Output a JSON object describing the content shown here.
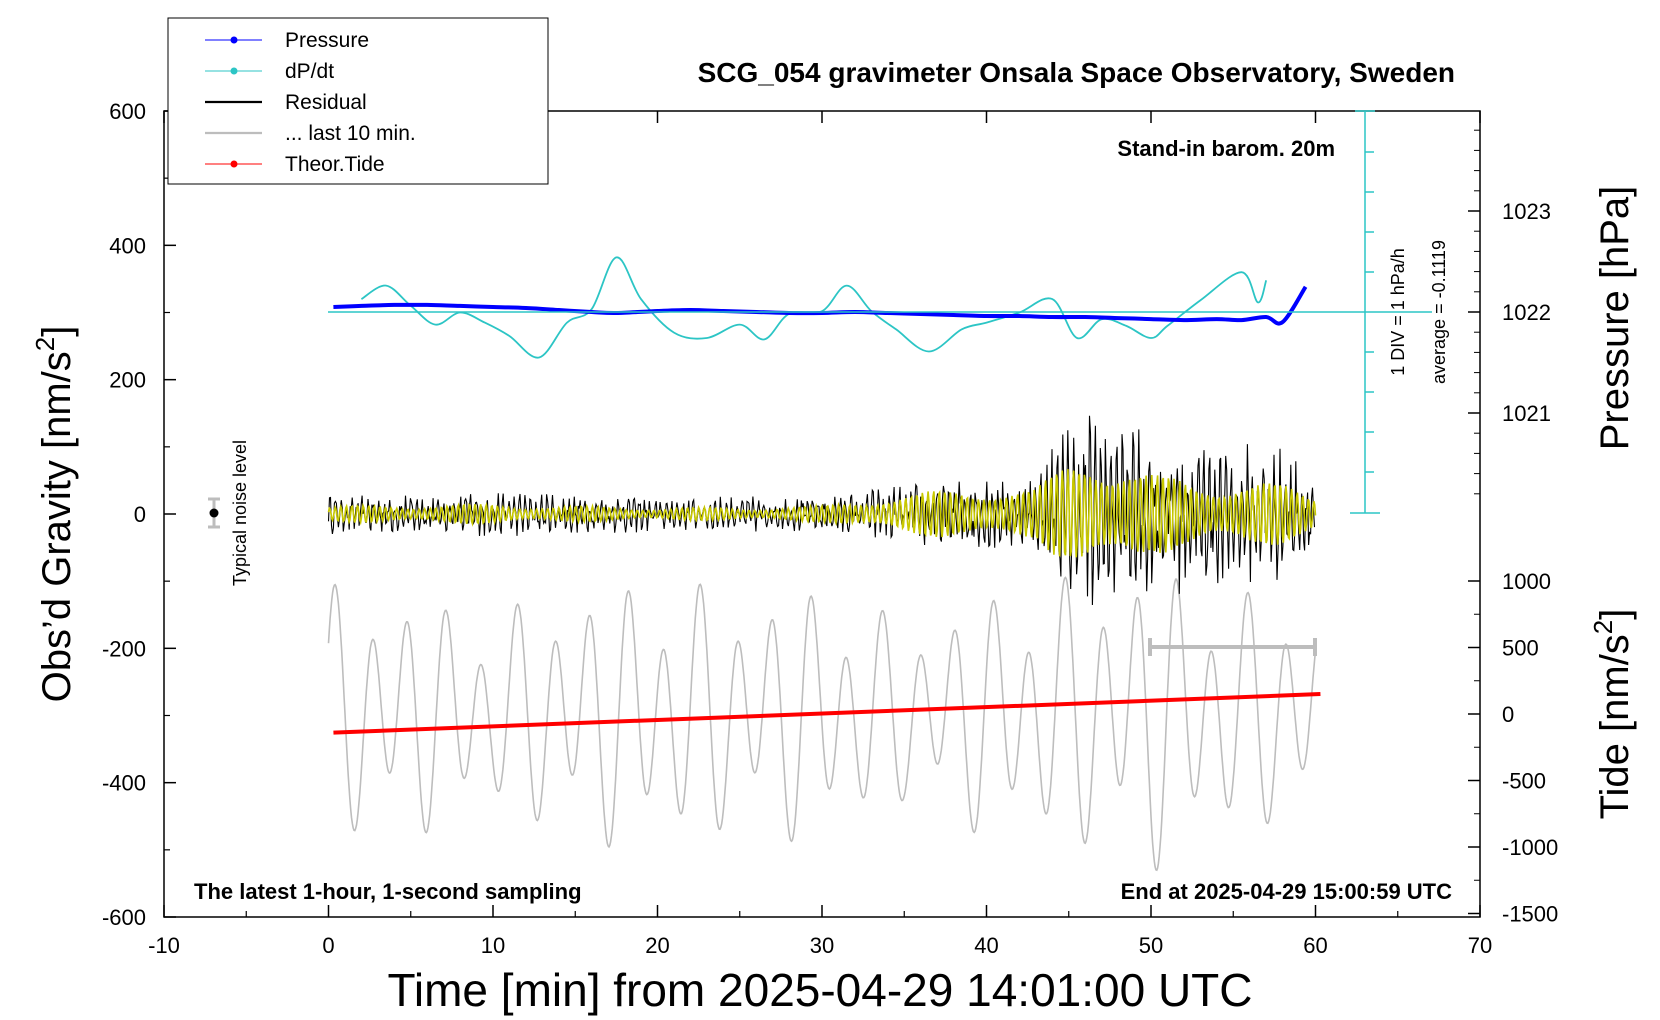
{
  "chart_data": {
    "type": "line",
    "title": "SCG_054 gravimeter Onsala Space Observatory, Sweden",
    "xlabel": "Time [min] from 2025-04-29 14:01:00 UTC",
    "ylabel": "Obs’d Gravity [nm/s²]",
    "ylabel_main": "Obs’d Gravity [nm/s",
    "ylabel_sup": "2",
    "ylabel_end": "]",
    "xlim": [
      -10,
      70
    ],
    "ylim": [
      -600,
      600
    ],
    "x_ticks": [
      "-10",
      "0",
      "10",
      "20",
      "30",
      "40",
      "50",
      "60",
      "70"
    ],
    "y_ticks": [
      "-600",
      "-400",
      "-200",
      "0",
      "200",
      "400",
      "600"
    ],
    "right_axis_pressure": {
      "label": "Pressure [hPa]",
      "ticks": [
        "1021",
        "1022",
        "1023"
      ],
      "values": [
        1021,
        1022,
        1023
      ]
    },
    "right_axis_tide": {
      "label_main": "Tide [nm/s",
      "label_sup": "2",
      "label_end": "]",
      "ticks": [
        "-1500",
        "-1000",
        "-500",
        "0",
        "500",
        "1000"
      ],
      "values": [
        -1500,
        -1000,
        -500,
        0,
        500,
        1000
      ]
    },
    "legend": [
      {
        "label": "Pressure",
        "color": "#0000ff"
      },
      {
        "label": "dP/dt",
        "color": "#2cc5c5"
      },
      {
        "label": "Residual",
        "color": "#000000"
      },
      {
        "label": "... last 10 min.",
        "color": "#bdbdbd"
      },
      {
        "label": "Theor.Tide",
        "color": "#ff0000"
      }
    ],
    "annotations": {
      "stand_in": "Stand-in barom. 20m",
      "scale_div": "1 DIV = 1 hPa/h",
      "average": "average = -0.1119",
      "noise": "Typical noise level",
      "latest": "The latest 1-hour, 1-second sampling",
      "end_at": "End at 2025-04-29 15:00:59 UTC"
    },
    "series": [
      {
        "name": "Pressure",
        "color": "#0000ff",
        "unit": "hPa",
        "x": [
          0.3,
          2,
          4,
          6,
          8,
          10,
          12,
          14,
          16,
          17.5,
          20,
          22,
          24,
          26,
          28,
          30,
          32,
          34,
          36,
          38,
          40,
          42,
          44,
          46,
          48,
          50,
          52,
          54,
          55.5,
          57,
          58,
          59.4
        ],
        "values": [
          1022.05,
          1022.06,
          1022.07,
          1022.07,
          1022.06,
          1022.05,
          1022.04,
          1022.02,
          1022.0,
          1021.99,
          1022.01,
          1022.02,
          1022.01,
          1022.0,
          1021.99,
          1021.99,
          1022.0,
          1021.99,
          1021.98,
          1021.97,
          1021.96,
          1021.96,
          1021.95,
          1021.95,
          1021.94,
          1021.93,
          1021.92,
          1021.93,
          1021.92,
          1021.95,
          1021.9,
          1022.25
        ]
      },
      {
        "name": "dP/dt",
        "color": "#2cc5c5",
        "unit": "gravity-axis",
        "x": [
          2,
          3.5,
          5,
          6.5,
          8,
          9.5,
          11,
          12.8,
          14.5,
          16,
          17.5,
          19,
          21,
          23,
          25,
          26.5,
          28,
          30,
          31.5,
          33,
          34.5,
          36.5,
          38.5,
          40,
          42,
          44,
          45.5,
          47,
          48.5,
          50,
          51,
          53,
          55.5,
          56.5,
          57
        ],
        "values": [
          320,
          340,
          310,
          282,
          300,
          285,
          265,
          233,
          285,
          305,
          382,
          320,
          270,
          262,
          282,
          260,
          298,
          302,
          340,
          302,
          275,
          242,
          275,
          285,
          300,
          320,
          262,
          290,
          280,
          262,
          280,
          318,
          360,
          315,
          348
        ]
      },
      {
        "name": "Residual",
        "color": "#000000",
        "unit": "nm/s²",
        "x": [
          0,
          5,
          10,
          15,
          20,
          25,
          30,
          33,
          37,
          40,
          43,
          44,
          45,
          46,
          47,
          48,
          50,
          52,
          54,
          56,
          58,
          60
        ],
        "amplitude": [
          30,
          32,
          35,
          30,
          28,
          28,
          28,
          40,
          55,
          60,
          55,
          110,
          140,
          160,
          170,
          140,
          120,
          120,
          110,
          110,
          100,
          70
        ]
      },
      {
        "name": "Residual filtered (last 10 min trace)",
        "color": "#c8c800",
        "unit": "nm/s²",
        "x": [
          0,
          5,
          10,
          15,
          20,
          25,
          30,
          33,
          37,
          40,
          43,
          44,
          45,
          46,
          47,
          48,
          50,
          52,
          54,
          56,
          58,
          60
        ],
        "amplitude": [
          12,
          14,
          15,
          12,
          10,
          10,
          12,
          25,
          35,
          42,
          38,
          60,
          80,
          100,
          95,
          80,
          60,
          55,
          50,
          50,
          45,
          30
        ]
      },
      {
        "name": "... last 10 min.",
        "color": "#bdbdbd",
        "unit": "nm/s²",
        "x": [
          0,
          5,
          10,
          15,
          20,
          25,
          30,
          35,
          40,
          45,
          50,
          55,
          60
        ],
        "amplitude": [
          900,
          850,
          700,
          900,
          950,
          850,
          900,
          650,
          850,
          950,
          1100,
          850,
          800
        ]
      },
      {
        "name": "Theor.Tide",
        "color": "#ff0000",
        "unit": "nm/s² (tide axis)",
        "x": [
          0.3,
          60.3
        ],
        "values": [
          -140,
          150
        ]
      }
    ]
  }
}
